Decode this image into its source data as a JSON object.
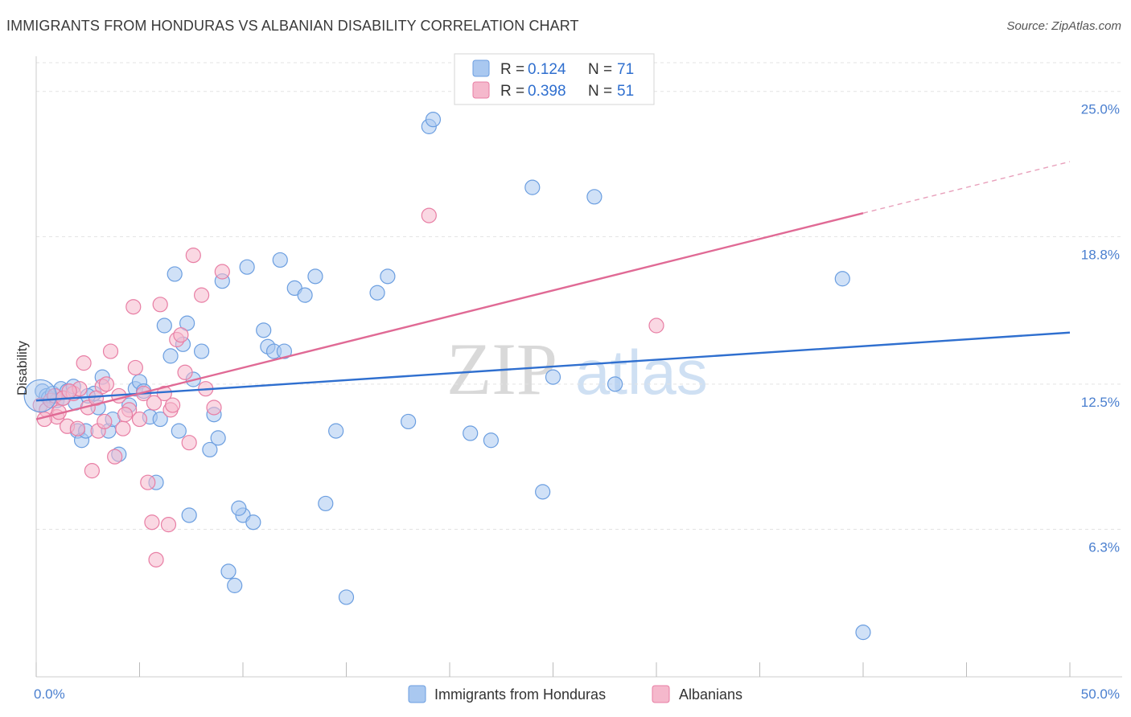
{
  "title": "IMMIGRANTS FROM HONDURAS VS ALBANIAN DISABILITY CORRELATION CHART",
  "source": "Source: ZipAtlas.com",
  "watermark": {
    "zip": "ZIP",
    "atlas": "atlas"
  },
  "chart_data": {
    "type": "scatter",
    "xlabel": "",
    "ylabel": "Disability",
    "xlim": [
      0,
      50
    ],
    "ylim": [
      0,
      26.5
    ],
    "x_tick_labels": [
      {
        "value": 0,
        "label": "0.0%"
      },
      {
        "value": 50,
        "label": "50.0%"
      }
    ],
    "y_ticks": [
      {
        "value": 6.3,
        "label": "6.3%"
      },
      {
        "value": 12.5,
        "label": "12.5%"
      },
      {
        "value": 18.8,
        "label": "18.8%"
      },
      {
        "value": 25.0,
        "label": "25.0%"
      }
    ],
    "legend": {
      "placement": "top-center",
      "entries": [
        {
          "r_label": "R =",
          "r_value": "0.124",
          "n_label": "N =",
          "n_value": "71"
        },
        {
          "r_label": "R =",
          "r_value": "0.398",
          "n_label": "N =",
          "n_value": "51"
        }
      ]
    },
    "series": [
      {
        "name": "Immigrants from Honduras",
        "color": "#6b9ee0",
        "fill": "#a9c8f0",
        "trend": {
          "x0": 0,
          "y0": 11.8,
          "x1": 50,
          "y1": 14.7
        },
        "points": [
          [
            0.3,
            12.2
          ],
          [
            0.5,
            12.0
          ],
          [
            0.6,
            11.9
          ],
          [
            0.8,
            12.1
          ],
          [
            1.0,
            11.8
          ],
          [
            1.2,
            12.3
          ],
          [
            1.5,
            12.2
          ],
          [
            1.8,
            12.4
          ],
          [
            1.9,
            11.7
          ],
          [
            2.0,
            10.5
          ],
          [
            2.2,
            10.1
          ],
          [
            2.4,
            10.5
          ],
          [
            2.8,
            12.1
          ],
          [
            3.0,
            11.5
          ],
          [
            3.2,
            12.8
          ],
          [
            3.5,
            10.5
          ],
          [
            3.7,
            11.0
          ],
          [
            4.0,
            9.5
          ],
          [
            4.5,
            11.6
          ],
          [
            4.8,
            12.3
          ],
          [
            5.0,
            12.6
          ],
          [
            5.5,
            11.1
          ],
          [
            5.8,
            8.3
          ],
          [
            6.2,
            15.0
          ],
          [
            6.5,
            13.7
          ],
          [
            6.7,
            17.2
          ],
          [
            6.9,
            10.5
          ],
          [
            7.1,
            14.2
          ],
          [
            7.3,
            15.1
          ],
          [
            7.4,
            6.9
          ],
          [
            7.6,
            12.7
          ],
          [
            8.0,
            13.9
          ],
          [
            8.4,
            9.7
          ],
          [
            8.6,
            11.2
          ],
          [
            8.8,
            10.2
          ],
          [
            9.0,
            16.9
          ],
          [
            9.3,
            4.5
          ],
          [
            9.6,
            3.9
          ],
          [
            10.0,
            6.9
          ],
          [
            10.2,
            17.5
          ],
          [
            10.5,
            6.6
          ],
          [
            11.0,
            14.8
          ],
          [
            11.2,
            14.1
          ],
          [
            11.5,
            13.9
          ],
          [
            11.8,
            17.8
          ],
          [
            12.0,
            13.9
          ],
          [
            12.5,
            16.6
          ],
          [
            13.0,
            16.3
          ],
          [
            13.5,
            17.1
          ],
          [
            14.0,
            7.4
          ],
          [
            14.5,
            10.5
          ],
          [
            15.0,
            3.4
          ],
          [
            16.5,
            16.4
          ],
          [
            17.0,
            17.1
          ],
          [
            18.0,
            10.9
          ],
          [
            19.0,
            23.5
          ],
          [
            19.2,
            23.8
          ],
          [
            21.0,
            10.4
          ],
          [
            22.0,
            10.1
          ],
          [
            24.0,
            20.9
          ],
          [
            24.5,
            7.9
          ],
          [
            25.0,
            12.8
          ],
          [
            27.0,
            20.5
          ],
          [
            28.0,
            12.5
          ],
          [
            39.0,
            17.0
          ],
          [
            40.0,
            1.9
          ],
          [
            2.5,
            12.0
          ],
          [
            1.3,
            11.9
          ],
          [
            6.0,
            11.0
          ],
          [
            9.8,
            7.2
          ],
          [
            5.2,
            12.2
          ]
        ]
      },
      {
        "name": "Albanians",
        "color": "#e87ea4",
        "fill": "#f5b8cc",
        "trend": {
          "x0": 0,
          "y0": 11.0,
          "x1": 40,
          "y1": 19.8
        },
        "trend_dashed": {
          "x0": 40,
          "y0": 19.8,
          "x1": 50,
          "y1": 22.0
        },
        "points": [
          [
            0.2,
            11.6
          ],
          [
            0.5,
            11.4
          ],
          [
            0.7,
            11.8
          ],
          [
            0.9,
            12.0
          ],
          [
            1.0,
            11.1
          ],
          [
            1.3,
            11.9
          ],
          [
            1.5,
            10.7
          ],
          [
            1.8,
            12.1
          ],
          [
            2.0,
            10.6
          ],
          [
            2.1,
            12.3
          ],
          [
            2.3,
            13.4
          ],
          [
            2.5,
            11.5
          ],
          [
            2.7,
            8.8
          ],
          [
            3.0,
            10.5
          ],
          [
            3.2,
            12.4
          ],
          [
            3.4,
            12.5
          ],
          [
            3.6,
            13.9
          ],
          [
            3.8,
            9.4
          ],
          [
            4.0,
            12.0
          ],
          [
            4.2,
            10.6
          ],
          [
            4.5,
            11.4
          ],
          [
            4.7,
            15.8
          ],
          [
            4.8,
            13.2
          ],
          [
            5.0,
            11.0
          ],
          [
            5.2,
            12.1
          ],
          [
            5.4,
            8.3
          ],
          [
            5.6,
            6.6
          ],
          [
            5.8,
            5.0
          ],
          [
            6.0,
            15.9
          ],
          [
            6.2,
            12.1
          ],
          [
            6.5,
            11.4
          ],
          [
            6.6,
            11.6
          ],
          [
            6.8,
            14.4
          ],
          [
            7.0,
            14.6
          ],
          [
            7.2,
            13.0
          ],
          [
            7.4,
            10.0
          ],
          [
            7.6,
            18.0
          ],
          [
            8.0,
            16.3
          ],
          [
            8.2,
            12.3
          ],
          [
            8.6,
            11.5
          ],
          [
            9.0,
            17.3
          ],
          [
            19.0,
            19.7
          ],
          [
            30.0,
            15.0
          ],
          [
            1.1,
            11.3
          ],
          [
            2.9,
            11.9
          ],
          [
            6.4,
            6.5
          ],
          [
            4.3,
            11.2
          ],
          [
            3.3,
            10.9
          ],
          [
            5.7,
            11.7
          ],
          [
            1.6,
            12.2
          ],
          [
            0.4,
            11.0
          ]
        ]
      }
    ]
  }
}
